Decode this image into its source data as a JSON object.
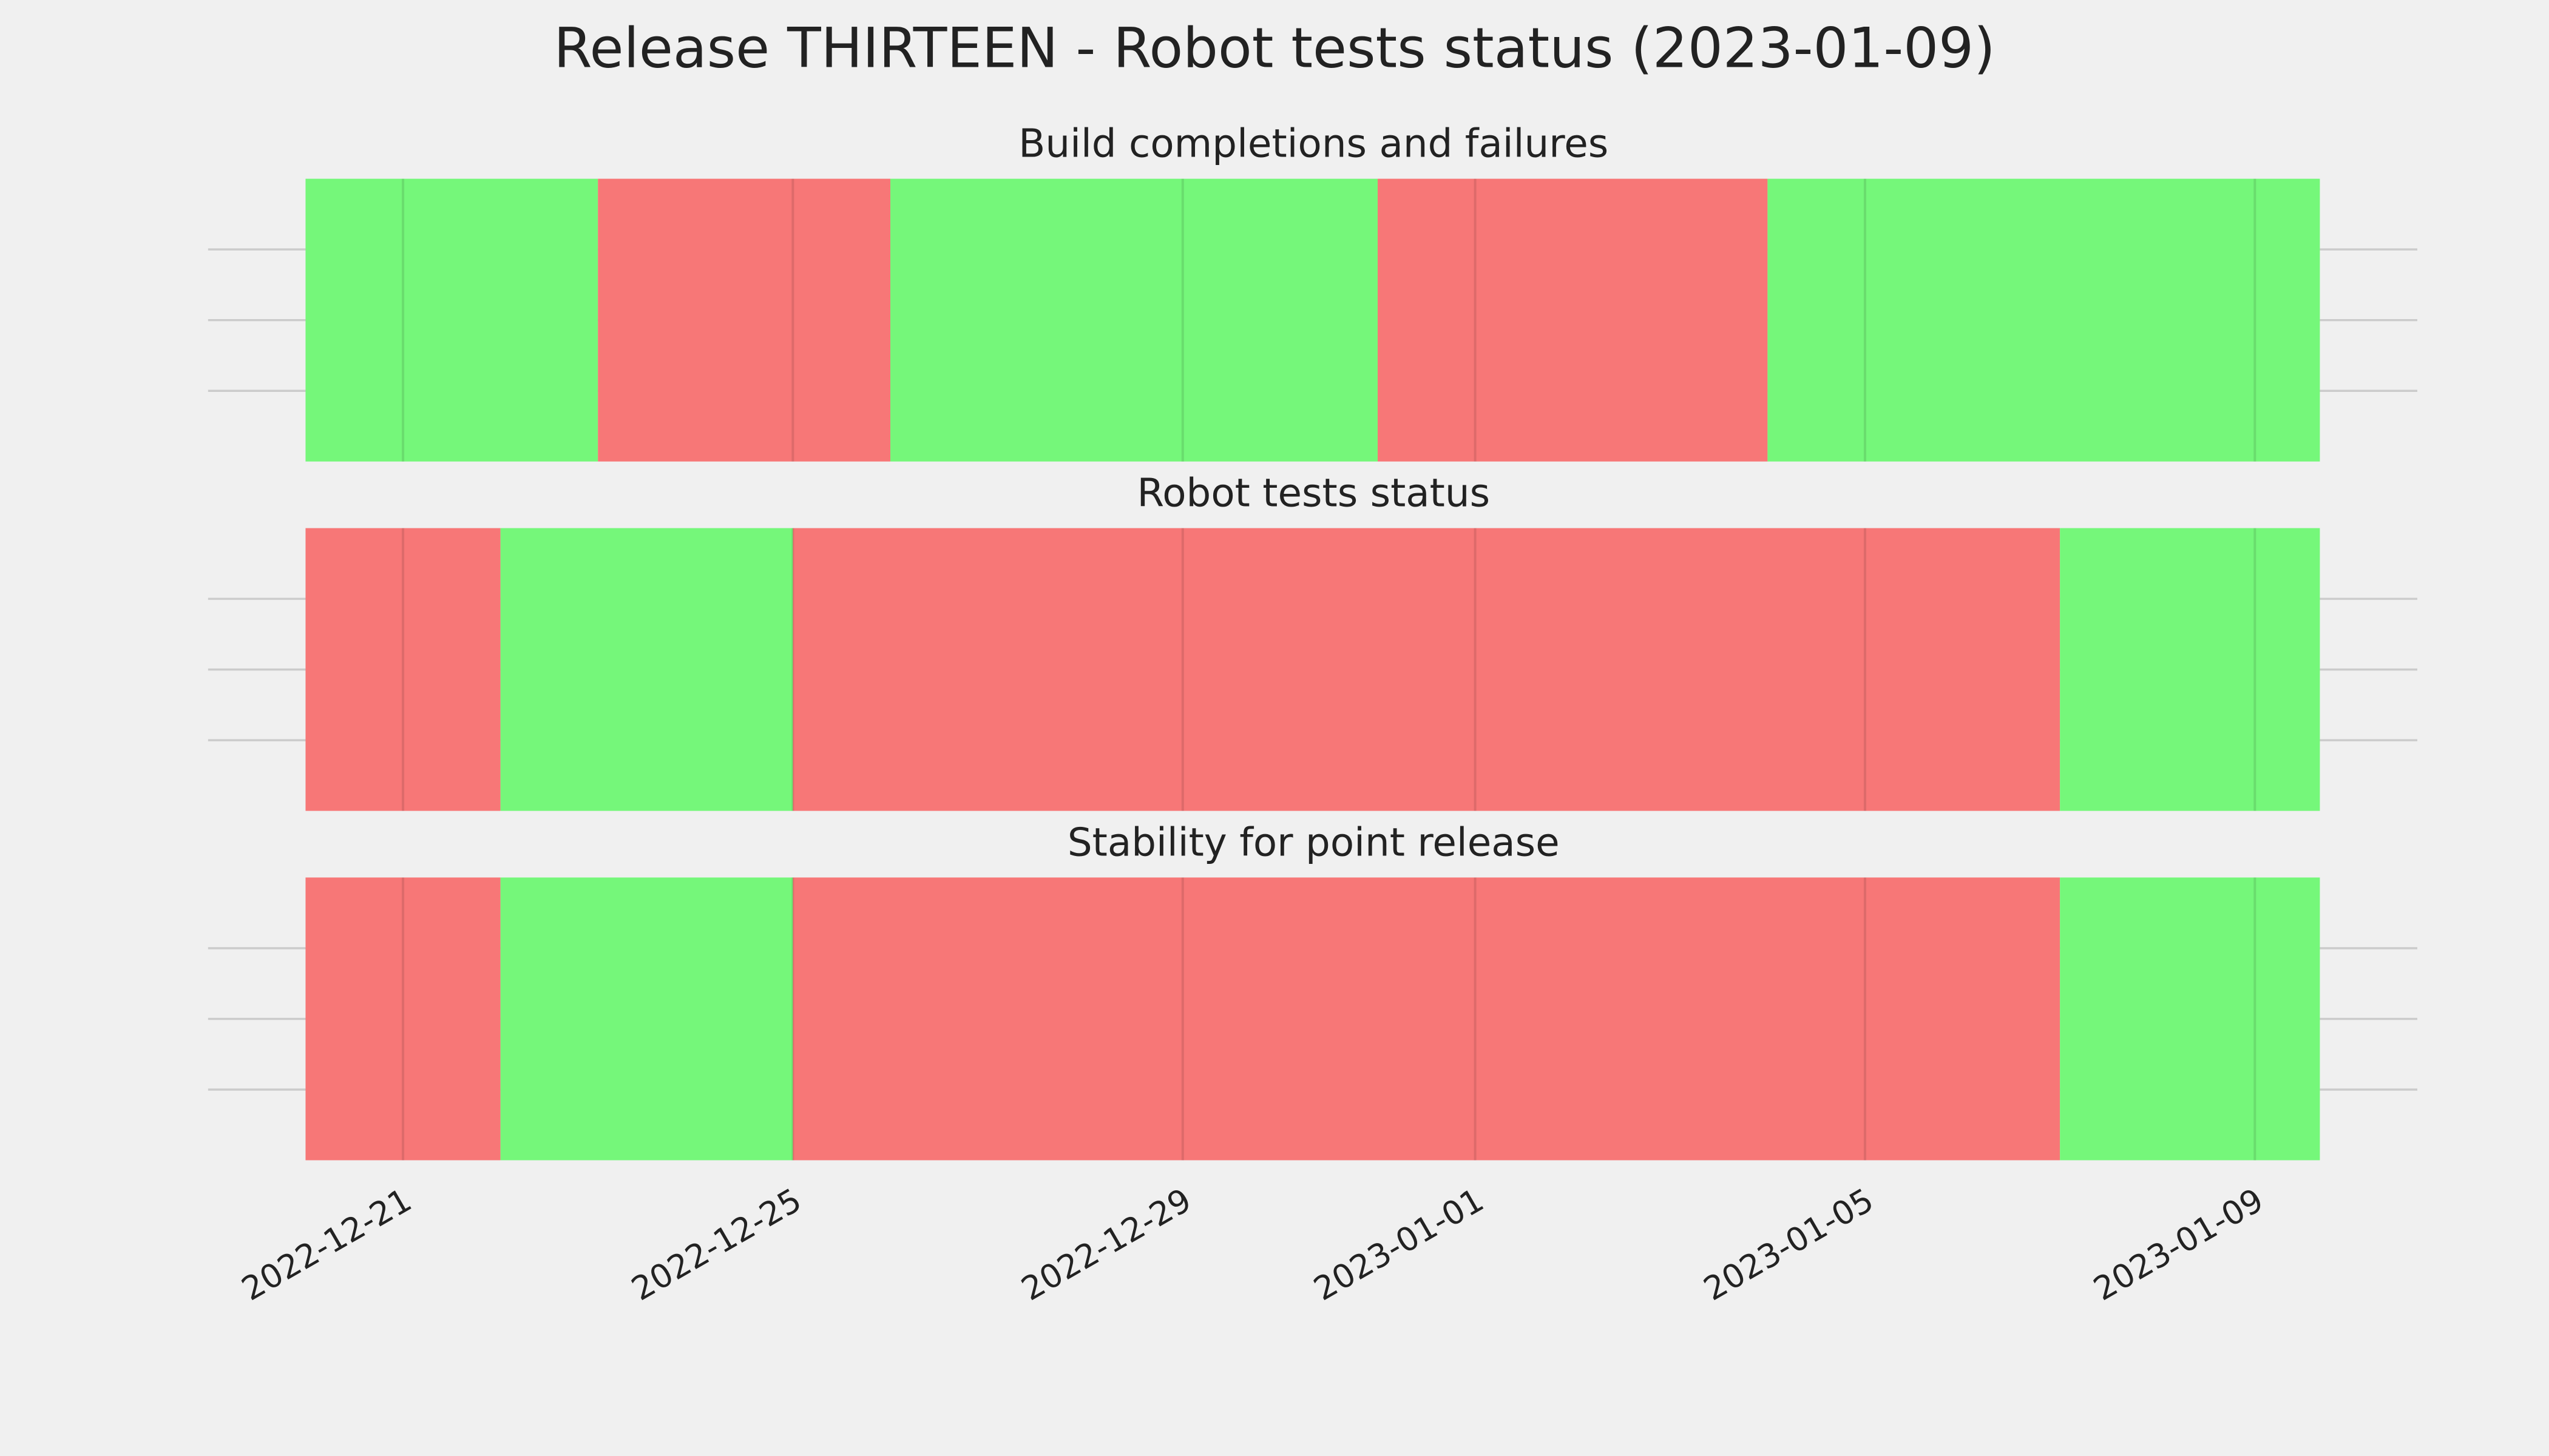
{
  "title": "Release THIRTEEN - Robot tests status (2023-01-09)",
  "chart_data": [
    {
      "type": "timeline",
      "title": "Build completions and failures",
      "xlim": [
        "2022-12-19T00:00",
        "2023-01-10T16:00"
      ],
      "xticks": [
        "2022-12-21",
        "2022-12-25",
        "2022-12-29",
        "2023-01-01",
        "2023-01-05",
        "2023-01-09"
      ],
      "ylim": [
        0,
        1
      ],
      "yticks": [
        0.25,
        0.5,
        0.75
      ],
      "grid": true,
      "segments": [
        {
          "start": "2022-12-20T00:00",
          "end": "2022-12-23T00:00",
          "color": "#75f77a"
        },
        {
          "start": "2022-12-23T00:00",
          "end": "2022-12-26T00:00",
          "color": "#f77777"
        },
        {
          "start": "2022-12-26T00:00",
          "end": "2022-12-31T00:00",
          "color": "#75f77a"
        },
        {
          "start": "2022-12-31T00:00",
          "end": "2023-01-04T00:00",
          "color": "#f77777"
        },
        {
          "start": "2023-01-04T00:00",
          "end": "2023-01-09T16:00",
          "color": "#75f77a"
        }
      ]
    },
    {
      "type": "timeline",
      "title": "Robot tests status",
      "xlim": [
        "2022-12-19T00:00",
        "2023-01-10T16:00"
      ],
      "xticks": [
        "2022-12-21",
        "2022-12-25",
        "2022-12-29",
        "2023-01-01",
        "2023-01-05",
        "2023-01-09"
      ],
      "ylim": [
        0,
        1
      ],
      "yticks": [
        0.25,
        0.5,
        0.75
      ],
      "grid": true,
      "segments": [
        {
          "start": "2022-12-20T00:00",
          "end": "2022-12-22T00:00",
          "color": "#f77777"
        },
        {
          "start": "2022-12-22T00:00",
          "end": "2022-12-25T00:00",
          "color": "#75f77a"
        },
        {
          "start": "2022-12-25T00:00",
          "end": "2023-01-07T00:00",
          "color": "#f77777"
        },
        {
          "start": "2023-01-07T00:00",
          "end": "2023-01-09T16:00",
          "color": "#75f77a"
        }
      ]
    },
    {
      "type": "timeline",
      "title": "Stability for point release",
      "xlim": [
        "2022-12-19T00:00",
        "2023-01-10T16:00"
      ],
      "xticks": [
        "2022-12-21",
        "2022-12-25",
        "2022-12-29",
        "2023-01-01",
        "2023-01-05",
        "2023-01-09"
      ],
      "ylim": [
        0,
        1
      ],
      "yticks": [
        0.25,
        0.5,
        0.75
      ],
      "grid": true,
      "show_xtick_labels": true,
      "segments": [
        {
          "start": "2022-12-20T00:00",
          "end": "2022-12-22T00:00",
          "color": "#f77777"
        },
        {
          "start": "2022-12-22T00:00",
          "end": "2022-12-25T00:00",
          "color": "#75f77a"
        },
        {
          "start": "2022-12-25T00:00",
          "end": "2023-01-07T00:00",
          "color": "#f77777"
        },
        {
          "start": "2023-01-07T00:00",
          "end": "2023-01-09T16:00",
          "color": "#75f77a"
        }
      ]
    }
  ]
}
